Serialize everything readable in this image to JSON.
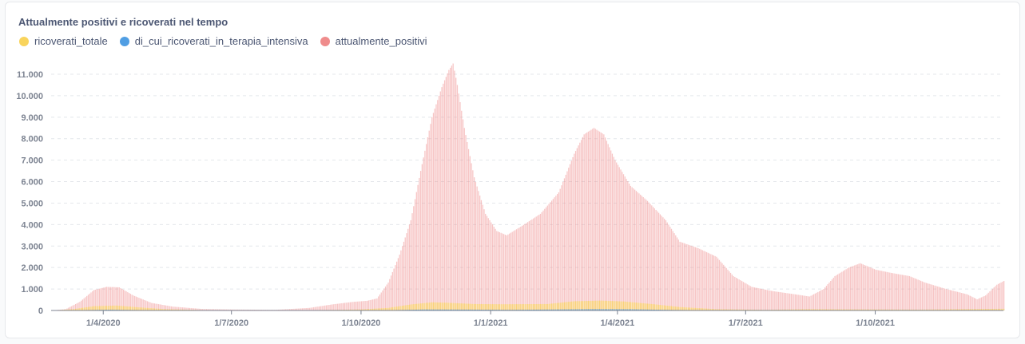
{
  "chart_data": {
    "type": "bar",
    "title": "Attualmente positivi e ricoverati nel tempo",
    "legend_placement": "top-left",
    "grid": true,
    "ylim": [
      0,
      11500
    ],
    "y_ticks": [
      0,
      1000,
      2000,
      3000,
      4000,
      5000,
      6000,
      7000,
      8000,
      9000,
      10000,
      11000
    ],
    "y_tick_labels": [
      "0",
      "1.000",
      "2.000",
      "3.000",
      "4.000",
      "5.000",
      "6.000",
      "7.000",
      "8.000",
      "9.000",
      "10.000",
      "11.000"
    ],
    "x_tick_labels": [
      "1/4/2020",
      "1/7/2020",
      "1/10/2020",
      "1/1/2021",
      "1/4/2021",
      "1/7/2021",
      "1/10/2021"
    ],
    "x_tick_dates": [
      "2020-04-01",
      "2020-07-01",
      "2020-10-01",
      "2021-01-01",
      "2021-04-01",
      "2021-07-01",
      "2021-10-01"
    ],
    "x_range": [
      "2020-02-24",
      "2021-12-31"
    ],
    "series": [
      {
        "name": "ricoverati_totale",
        "color": "#f9d45c",
        "points": [
          [
            "2020-02-24",
            0
          ],
          [
            "2020-03-10",
            60
          ],
          [
            "2020-03-25",
            200
          ],
          [
            "2020-04-10",
            230
          ],
          [
            "2020-04-25",
            150
          ],
          [
            "2020-05-15",
            60
          ],
          [
            "2020-06-10",
            20
          ],
          [
            "2020-08-15",
            10
          ],
          [
            "2020-09-15",
            30
          ],
          [
            "2020-10-01",
            50
          ],
          [
            "2020-10-20",
            120
          ],
          [
            "2020-11-05",
            280
          ],
          [
            "2020-11-20",
            380
          ],
          [
            "2020-12-01",
            360
          ],
          [
            "2020-12-20",
            300
          ],
          [
            "2021-01-10",
            290
          ],
          [
            "2021-02-10",
            300
          ],
          [
            "2021-03-01",
            430
          ],
          [
            "2021-03-20",
            460
          ],
          [
            "2021-04-05",
            420
          ],
          [
            "2021-04-25",
            300
          ],
          [
            "2021-05-15",
            160
          ],
          [
            "2021-06-10",
            60
          ],
          [
            "2021-07-15",
            30
          ],
          [
            "2021-08-15",
            60
          ],
          [
            "2021-09-15",
            50
          ],
          [
            "2021-11-01",
            40
          ],
          [
            "2021-12-31",
            80
          ]
        ]
      },
      {
        "name": "di_cui_ricoverati_in_terapia_intensiva",
        "color": "#509ee3",
        "points": [
          [
            "2020-02-24",
            0
          ],
          [
            "2020-03-20",
            20
          ],
          [
            "2020-04-05",
            35
          ],
          [
            "2020-05-01",
            15
          ],
          [
            "2020-06-01",
            3
          ],
          [
            "2020-10-15",
            8
          ],
          [
            "2020-11-15",
            45
          ],
          [
            "2020-12-15",
            40
          ],
          [
            "2021-01-15",
            30
          ],
          [
            "2021-03-15",
            60
          ],
          [
            "2021-04-10",
            55
          ],
          [
            "2021-05-10",
            25
          ],
          [
            "2021-06-15",
            5
          ],
          [
            "2021-08-20",
            8
          ],
          [
            "2021-12-31",
            10
          ]
        ]
      },
      {
        "name": "attualmente_positivi",
        "color": "#ef8c8c",
        "points": [
          [
            "2020-02-24",
            0
          ],
          [
            "2020-03-05",
            60
          ],
          [
            "2020-03-15",
            400
          ],
          [
            "2020-03-25",
            950
          ],
          [
            "2020-04-03",
            1100
          ],
          [
            "2020-04-12",
            1080
          ],
          [
            "2020-04-22",
            700
          ],
          [
            "2020-05-05",
            350
          ],
          [
            "2020-05-20",
            180
          ],
          [
            "2020-06-10",
            70
          ],
          [
            "2020-07-01",
            45
          ],
          [
            "2020-08-01",
            30
          ],
          [
            "2020-08-25",
            120
          ],
          [
            "2020-09-10",
            280
          ],
          [
            "2020-09-25",
            400
          ],
          [
            "2020-10-05",
            450
          ],
          [
            "2020-10-12",
            560
          ],
          [
            "2020-10-20",
            1300
          ],
          [
            "2020-10-28",
            2600
          ],
          [
            "2020-11-05",
            4200
          ],
          [
            "2020-11-12",
            6500
          ],
          [
            "2020-11-20",
            9000
          ],
          [
            "2020-11-27",
            10400
          ],
          [
            "2020-12-02",
            11200
          ],
          [
            "2020-12-05",
            11500
          ],
          [
            "2020-12-08",
            10500
          ],
          [
            "2020-12-13",
            8500
          ],
          [
            "2020-12-20",
            6200
          ],
          [
            "2020-12-28",
            4500
          ],
          [
            "2021-01-05",
            3700
          ],
          [
            "2021-01-12",
            3500
          ],
          [
            "2021-01-22",
            3900
          ],
          [
            "2021-02-05",
            4500
          ],
          [
            "2021-02-18",
            5500
          ],
          [
            "2021-03-01",
            7300
          ],
          [
            "2021-03-08",
            8200
          ],
          [
            "2021-03-15",
            8500
          ],
          [
            "2021-03-22",
            8200
          ],
          [
            "2021-03-30",
            7000
          ],
          [
            "2021-04-10",
            5800
          ],
          [
            "2021-04-22",
            5100
          ],
          [
            "2021-05-05",
            4200
          ],
          [
            "2021-05-15",
            3200
          ],
          [
            "2021-05-28",
            2900
          ],
          [
            "2021-06-10",
            2500
          ],
          [
            "2021-06-22",
            1600
          ],
          [
            "2021-07-05",
            1100
          ],
          [
            "2021-07-20",
            900
          ],
          [
            "2021-08-05",
            750
          ],
          [
            "2021-08-15",
            650
          ],
          [
            "2021-08-25",
            1000
          ],
          [
            "2021-09-02",
            1600
          ],
          [
            "2021-09-12",
            2000
          ],
          [
            "2021-09-20",
            2200
          ],
          [
            "2021-10-01",
            1900
          ],
          [
            "2021-10-12",
            1750
          ],
          [
            "2021-10-25",
            1600
          ],
          [
            "2021-11-05",
            1300
          ],
          [
            "2021-11-20",
            1000
          ],
          [
            "2021-12-05",
            750
          ],
          [
            "2021-12-12",
            520
          ],
          [
            "2021-12-18",
            700
          ],
          [
            "2021-12-26",
            1200
          ],
          [
            "2022-01-05",
            1550
          ],
          [
            "2022-01-20",
            1650
          ]
        ]
      }
    ]
  }
}
